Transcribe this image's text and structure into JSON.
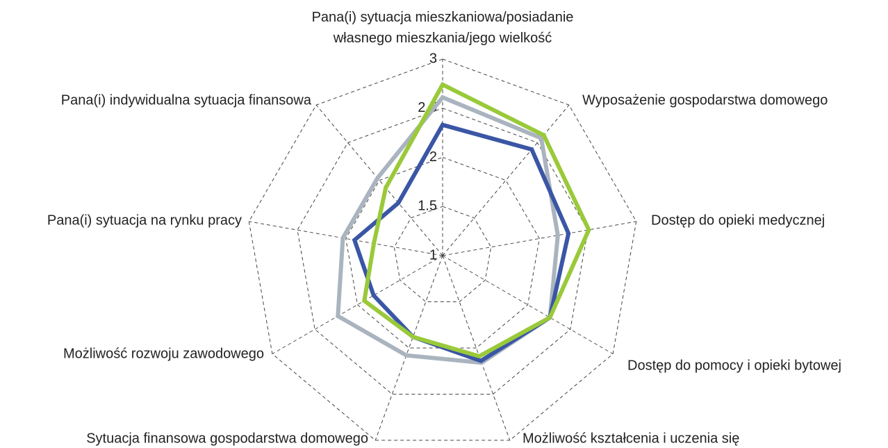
{
  "chart_data": {
    "type": "radar",
    "categories": [
      "Pana(i) sytuacja mieszkaniowa/posiadanie własnego mieszkania/jego wielkość",
      "Wyposażenie gospodarstwa domowego",
      "Dostęp do opieki medycznej",
      "Dostęp do pomocy i opieki bytowej",
      "Możliwość kształcenia i uczenia się",
      "Sytuacja finansowa gospodarstwa domowego",
      "Możliwość rozwoju zawodowego",
      "Pana(i) sytuacja na rynku pracy",
      "Pana(i) indywidualna sytuacja finansowa"
    ],
    "series": [
      {
        "color": "#aab4bf",
        "values": [
          2.61,
          2.56,
          2.19,
          2.26,
          2.16,
          2.08,
          2.23,
          2.03,
          2.03
        ]
      },
      {
        "color": "#3a56a5",
        "values": [
          2.33,
          2.41,
          2.3,
          2.26,
          2.14,
          1.88,
          1.81,
          1.91,
          1.7
        ]
      },
      {
        "color": "#9ac93a",
        "values": [
          2.74,
          2.6,
          2.51,
          2.26,
          2.09,
          1.88,
          1.92,
          1.71,
          1.9
        ]
      }
    ],
    "ylim": [
      1,
      3
    ],
    "yticks": [
      1,
      1.5,
      2,
      2.5,
      3
    ],
    "grid": true
  }
}
